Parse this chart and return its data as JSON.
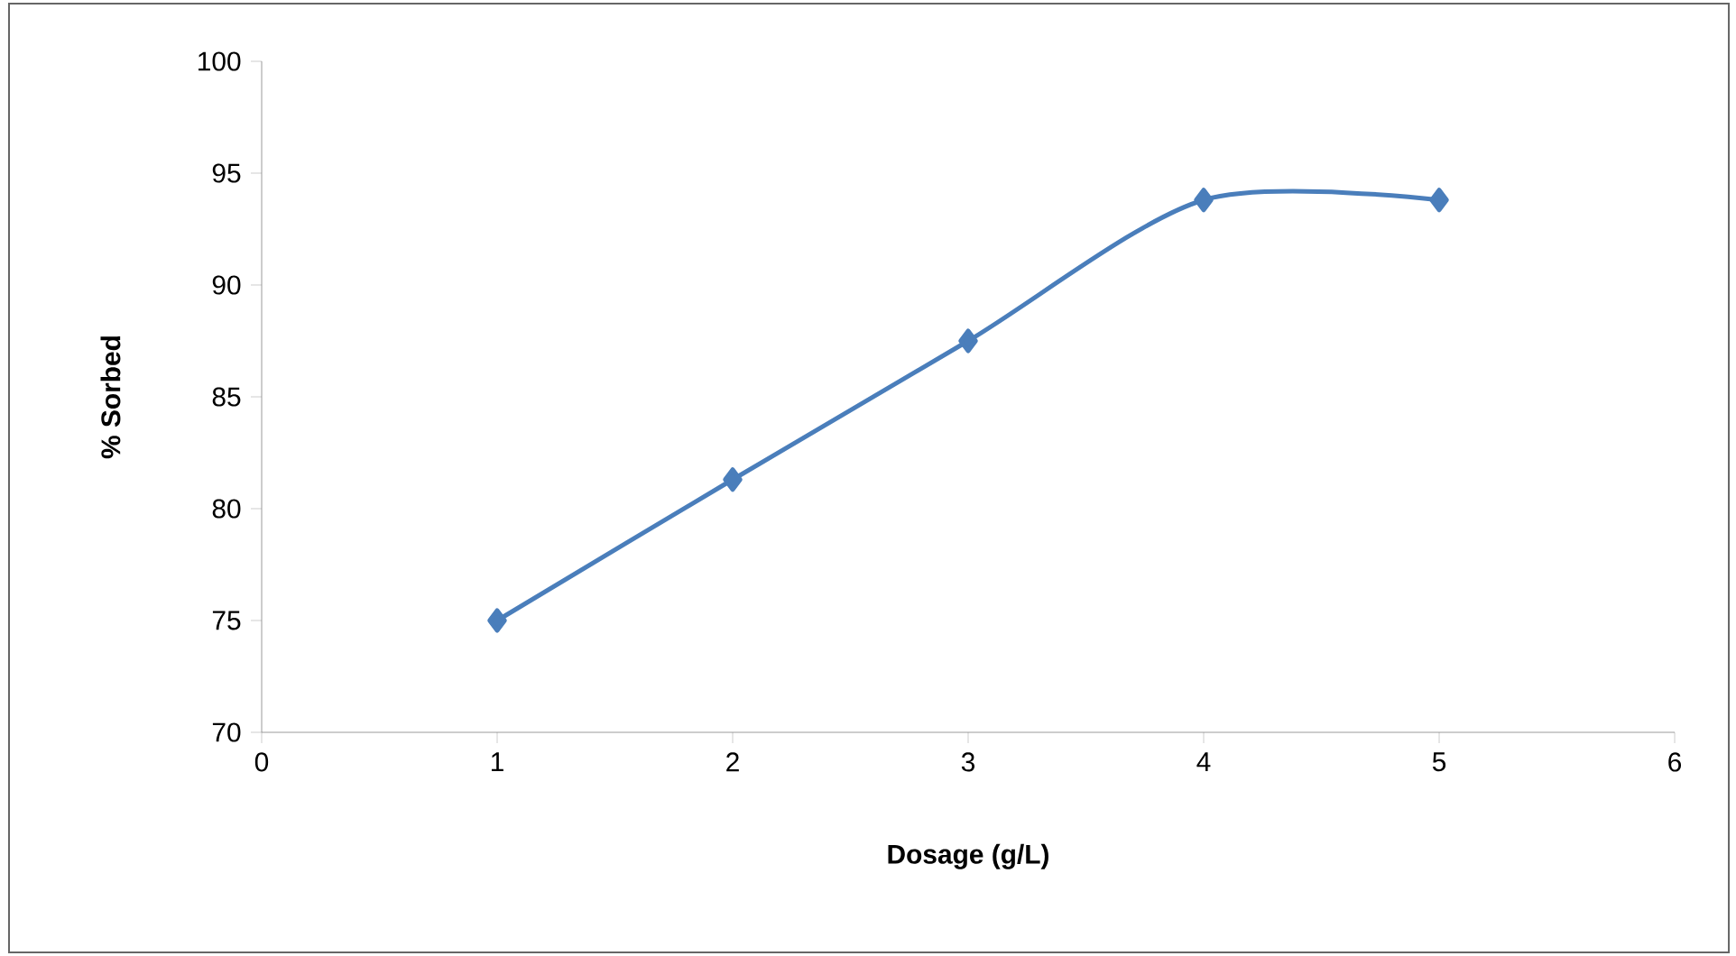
{
  "chart_data": {
    "type": "line",
    "xlabel": "Dosage (g/L)",
    "ylabel": "% Sorbed",
    "x": [
      1,
      2,
      3,
      4,
      5
    ],
    "series": [
      {
        "color": "#4a7ebb",
        "values": [
          75,
          81.3,
          87.5,
          93.8,
          93.8
        ]
      }
    ],
    "xlim": [
      0,
      6
    ],
    "xticks": [
      0,
      1,
      2,
      3,
      4,
      5,
      6
    ],
    "ylim": [
      70,
      100
    ],
    "yticks": [
      70,
      75,
      80,
      85,
      90,
      95,
      100
    ],
    "grid": false,
    "marker": "diamond",
    "line_style": "solid"
  }
}
